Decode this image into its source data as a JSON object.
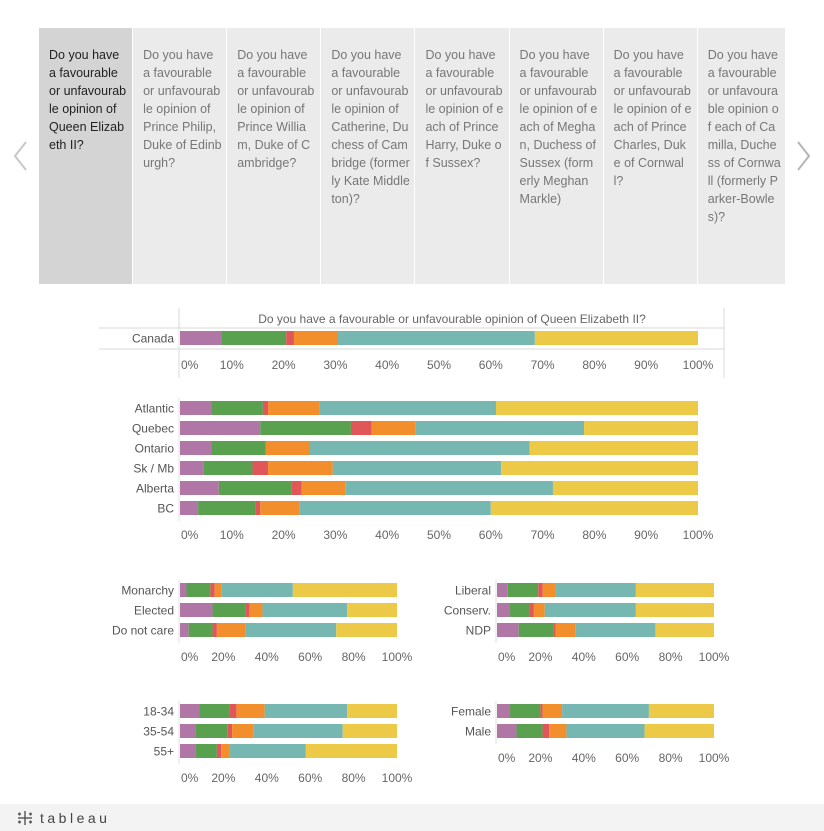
{
  "tabs": [
    "Do you have a favourable or unfavourable opinion of Queen Elizabeth II?",
    "Do you have a favourable or unfavourable opinion of Prince Philip, Duke of Edinburgh?",
    "Do you have a favourable or unfavourable opinion of Prince William, Duke of Cambridge?",
    "Do you have a favourable or unfavourable opinion of Catherine, Duchess of Cambridge (formerly Kate Middleton)?",
    "Do you have a favourable or unfavourable opinion of each of Prince Harry, Duke of Sussex?",
    "Do you have a favourable or unfavourable opinion of each of Meghan, Duchess of Sussex (formerly Meghan Markle)",
    "Do you have a favourable or unfavourable opinion of each of Prince Charles, Duke of Cornwall?",
    "Do you have a favourable or unfavourable opinion of each of Camilla, Duchess of Cornwall (formerly Parker-Bowles)?"
  ],
  "active_tab": 0,
  "icons": {
    "prev": "chevron-left-icon",
    "next": "chevron-right-icon",
    "logo": "tableau-logo-icon"
  },
  "footer": {
    "logo_text": "tableau"
  },
  "colors": [
    "#b077a6",
    "#59a14f",
    "#e15759",
    "#f28e2b",
    "#76b7b2",
    "#edc948"
  ],
  "chart_data": [
    {
      "type": "bar",
      "stacked": true,
      "orientation": "horizontal",
      "title": "Do you have a favourable or unfavourable opinion of Queen Elizabeth II?",
      "categories": [
        "Canada"
      ],
      "segments": [
        [
          8,
          12.5,
          1.5,
          8.5,
          38,
          31.5
        ]
      ],
      "xticks": [
        "0%",
        "10%",
        "20%",
        "30%",
        "40%",
        "50%",
        "60%",
        "70%",
        "80%",
        "90%",
        "100%"
      ]
    },
    {
      "type": "bar",
      "stacked": true,
      "orientation": "horizontal",
      "categories": [
        "Atlantic",
        "Quebec",
        "Ontario",
        "Sk / Mb",
        "Alberta",
        "BC"
      ],
      "segments": [
        [
          6,
          10,
          1,
          10,
          34,
          39
        ],
        [
          15.5,
          17.5,
          4,
          8.5,
          32.5,
          22
        ],
        [
          6,
          10.5,
          0,
          8.5,
          42.5,
          32.5
        ],
        [
          4.5,
          9.5,
          3,
          12.5,
          32.5,
          38
        ],
        [
          7.5,
          14,
          2,
          8.5,
          40,
          28
        ],
        [
          3.5,
          11,
          1,
          7.5,
          37,
          40
        ]
      ],
      "xticks": [
        "0%",
        "10%",
        "20%",
        "30%",
        "40%",
        "50%",
        "60%",
        "70%",
        "80%",
        "90%",
        "100%"
      ]
    },
    {
      "type": "bar",
      "stacked": true,
      "orientation": "horizontal",
      "categories": [
        "Monarchy",
        "Elected",
        "Do not care"
      ],
      "segments": [
        [
          3,
          11,
          2,
          3,
          33,
          48
        ],
        [
          15,
          15,
          2,
          6,
          39,
          23
        ],
        [
          4,
          11,
          2,
          13,
          42,
          28
        ]
      ],
      "xticks": [
        "0%",
        "20%",
        "40%",
        "60%",
        "80%",
        "100%"
      ]
    },
    {
      "type": "bar",
      "stacked": true,
      "orientation": "horizontal",
      "categories": [
        "Liberal",
        "Conserv.",
        "NDP"
      ],
      "segments": [
        [
          5,
          14,
          2,
          6,
          37,
          36
        ],
        [
          6,
          9,
          2,
          5,
          42,
          36
        ],
        [
          10,
          16,
          1,
          9,
          37,
          27
        ]
      ],
      "xticks": [
        "0%",
        "20%",
        "40%",
        "60%",
        "80%",
        "100%"
      ]
    },
    {
      "type": "bar",
      "stacked": true,
      "orientation": "horizontal",
      "categories": [
        "18-34",
        "35-54",
        "55+"
      ],
      "segments": [
        [
          9,
          14,
          3,
          13,
          38,
          23
        ],
        [
          7,
          15,
          2,
          10,
          41,
          25
        ],
        [
          7,
          10,
          2,
          4,
          35,
          42
        ]
      ],
      "xticks": [
        "0%",
        "20%",
        "40%",
        "60%",
        "80%",
        "100%"
      ]
    },
    {
      "type": "bar",
      "stacked": true,
      "orientation": "horizontal",
      "categories": [
        "Female",
        "Male"
      ],
      "segments": [
        [
          6,
          14,
          1,
          9,
          40,
          30
        ],
        [
          9,
          12,
          3,
          8,
          36,
          32
        ]
      ],
      "xticks": [
        "0%",
        "20%",
        "40%",
        "60%",
        "80%",
        "100%"
      ]
    }
  ]
}
